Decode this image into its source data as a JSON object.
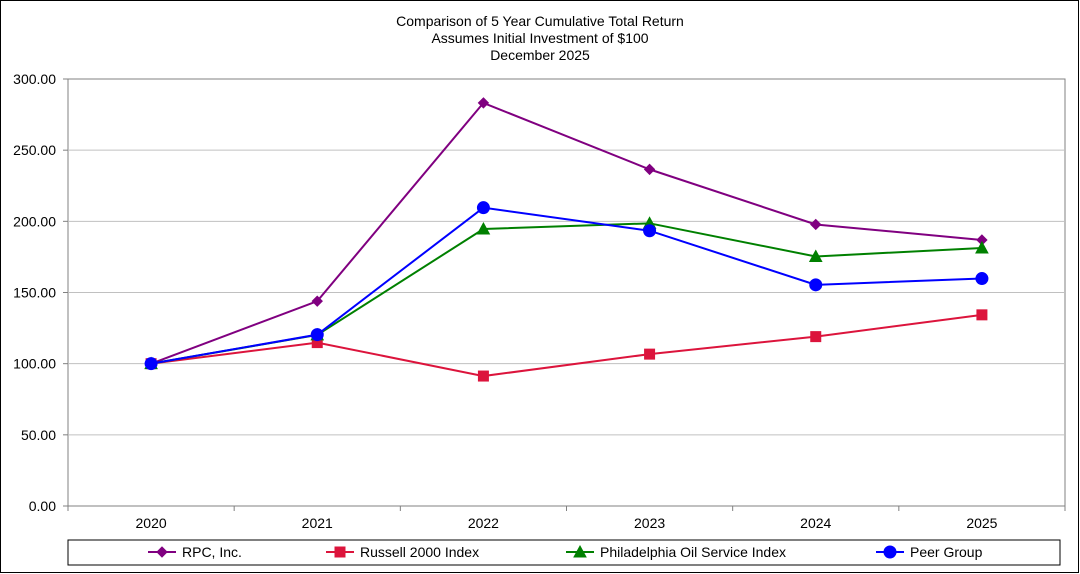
{
  "chart_data": {
    "type": "line",
    "title": "Comparison of 5 Year Cumulative Total Return",
    "subtitle": "Assumes Initial Investment of $100",
    "subtitle2": "December 2025",
    "xlabel": "",
    "ylabel": "",
    "categories": [
      "2020",
      "2021",
      "2022",
      "2023",
      "2024",
      "2025"
    ],
    "ylim": [
      0,
      300
    ],
    "yticks": [
      "0.00",
      "50.00",
      "100.00",
      "150.00",
      "200.00",
      "250.00",
      "300.00"
    ],
    "grid": true,
    "legend_placement": "bottom",
    "series": [
      {
        "name": "RPC, Inc.",
        "values": [
          100.0,
          143.9,
          283.2,
          236.5,
          197.8,
          186.9
        ],
        "color": "#800080",
        "marker": "diamond"
      },
      {
        "name": "Russell 2000 Index",
        "values": [
          100.0,
          114.8,
          91.3,
          106.7,
          119.0,
          134.3
        ],
        "color": "#dc143c",
        "marker": "square"
      },
      {
        "name": "Philadelphia Oil Service Index",
        "values": [
          100.0,
          120.2,
          194.6,
          198.6,
          175.3,
          181.3
        ],
        "color": "#008000",
        "marker": "triangle"
      },
      {
        "name": "Peer Group",
        "values": [
          100.0,
          120.4,
          209.6,
          193.4,
          155.4,
          159.8
        ],
        "color": "#0000ff",
        "marker": "circle"
      }
    ]
  }
}
